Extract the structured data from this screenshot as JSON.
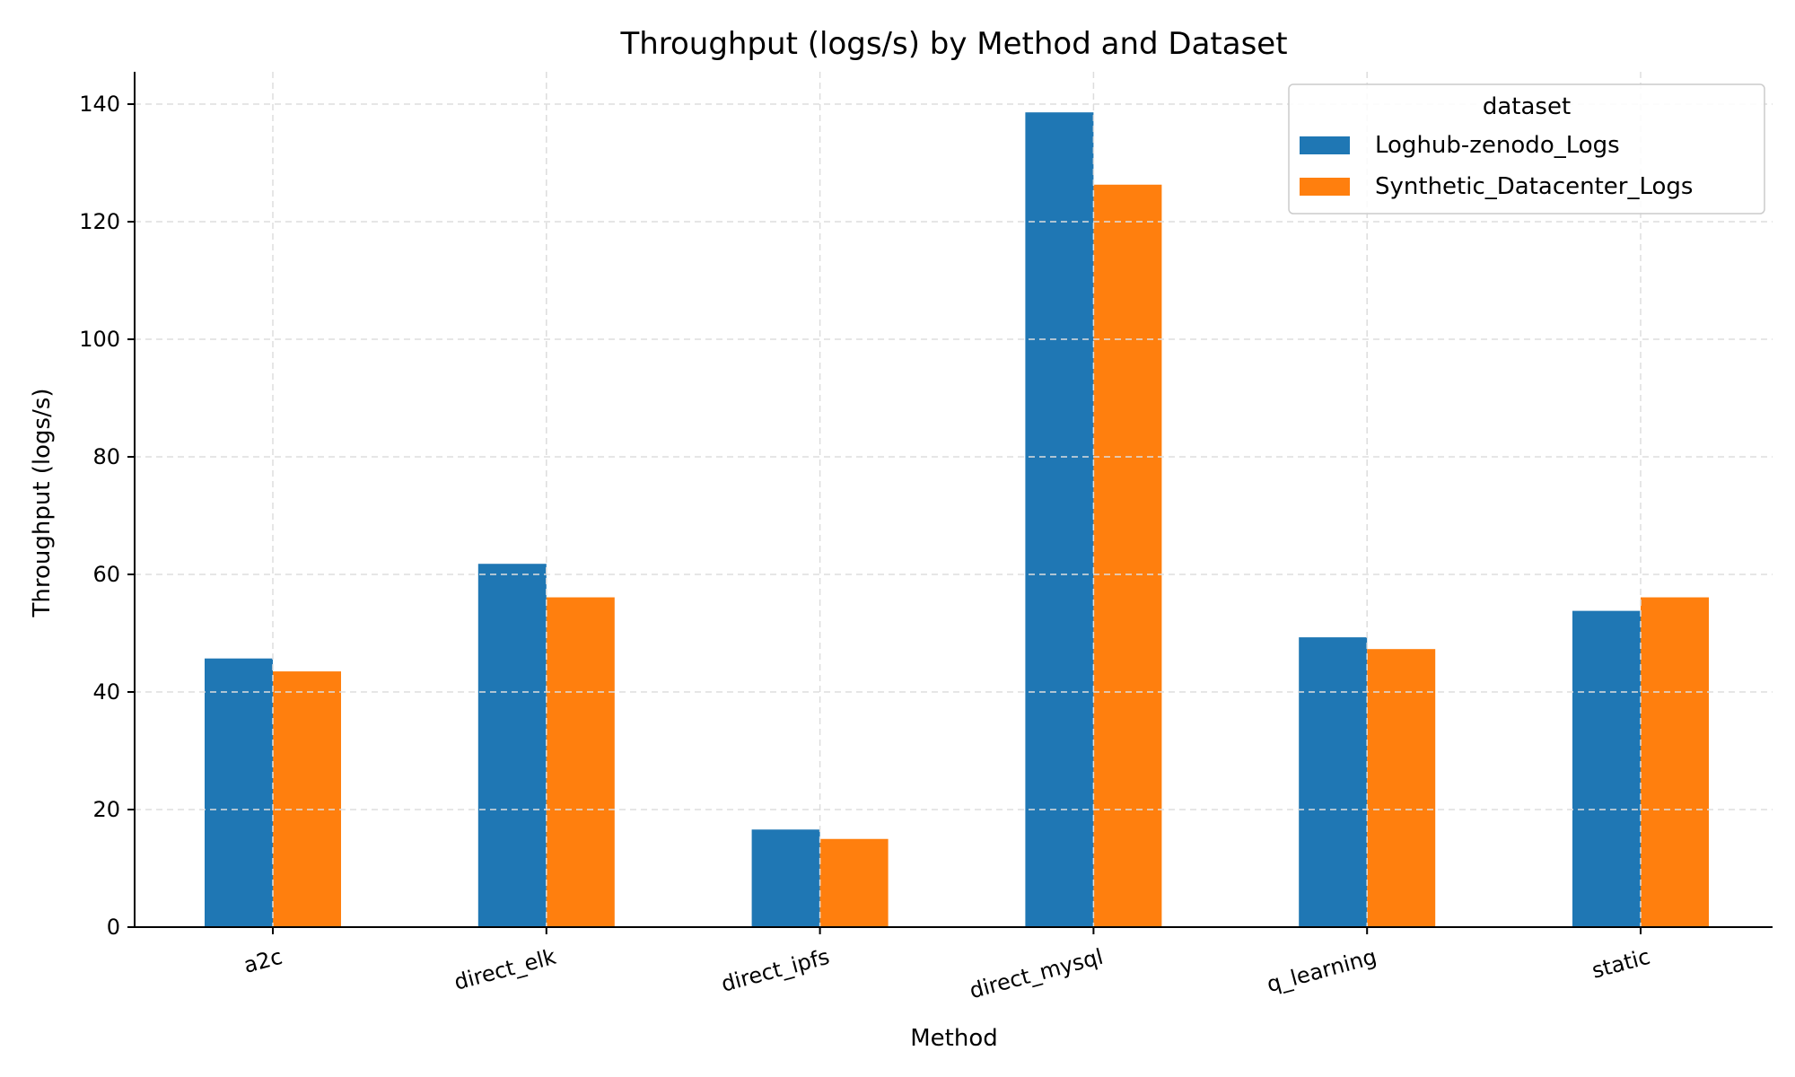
{
  "chart_data": {
    "type": "bar",
    "title": "Throughput (logs/s) by Method and Dataset",
    "xlabel": "Method",
    "ylabel": "Throughput (logs/s)",
    "categories": [
      "a2c",
      "direct_elk",
      "direct_ipfs",
      "direct_mysql",
      "q_learning",
      "static"
    ],
    "series": [
      {
        "name": "Loghub-zenodo_Logs",
        "color": "#1f77b4",
        "values": [
          45.7,
          61.8,
          16.6,
          138.6,
          49.3,
          53.8
        ]
      },
      {
        "name": "Synthetic_Datacenter_Logs",
        "color": "#ff7f0e",
        "values": [
          43.5,
          56.1,
          15.0,
          126.3,
          47.3,
          56.1
        ]
      }
    ],
    "ylim": [
      0,
      145.5
    ],
    "yticks": [
      0,
      20,
      40,
      60,
      80,
      100,
      120,
      140
    ],
    "grid": true,
    "legend": {
      "title": "dataset",
      "position": "top-right"
    }
  }
}
